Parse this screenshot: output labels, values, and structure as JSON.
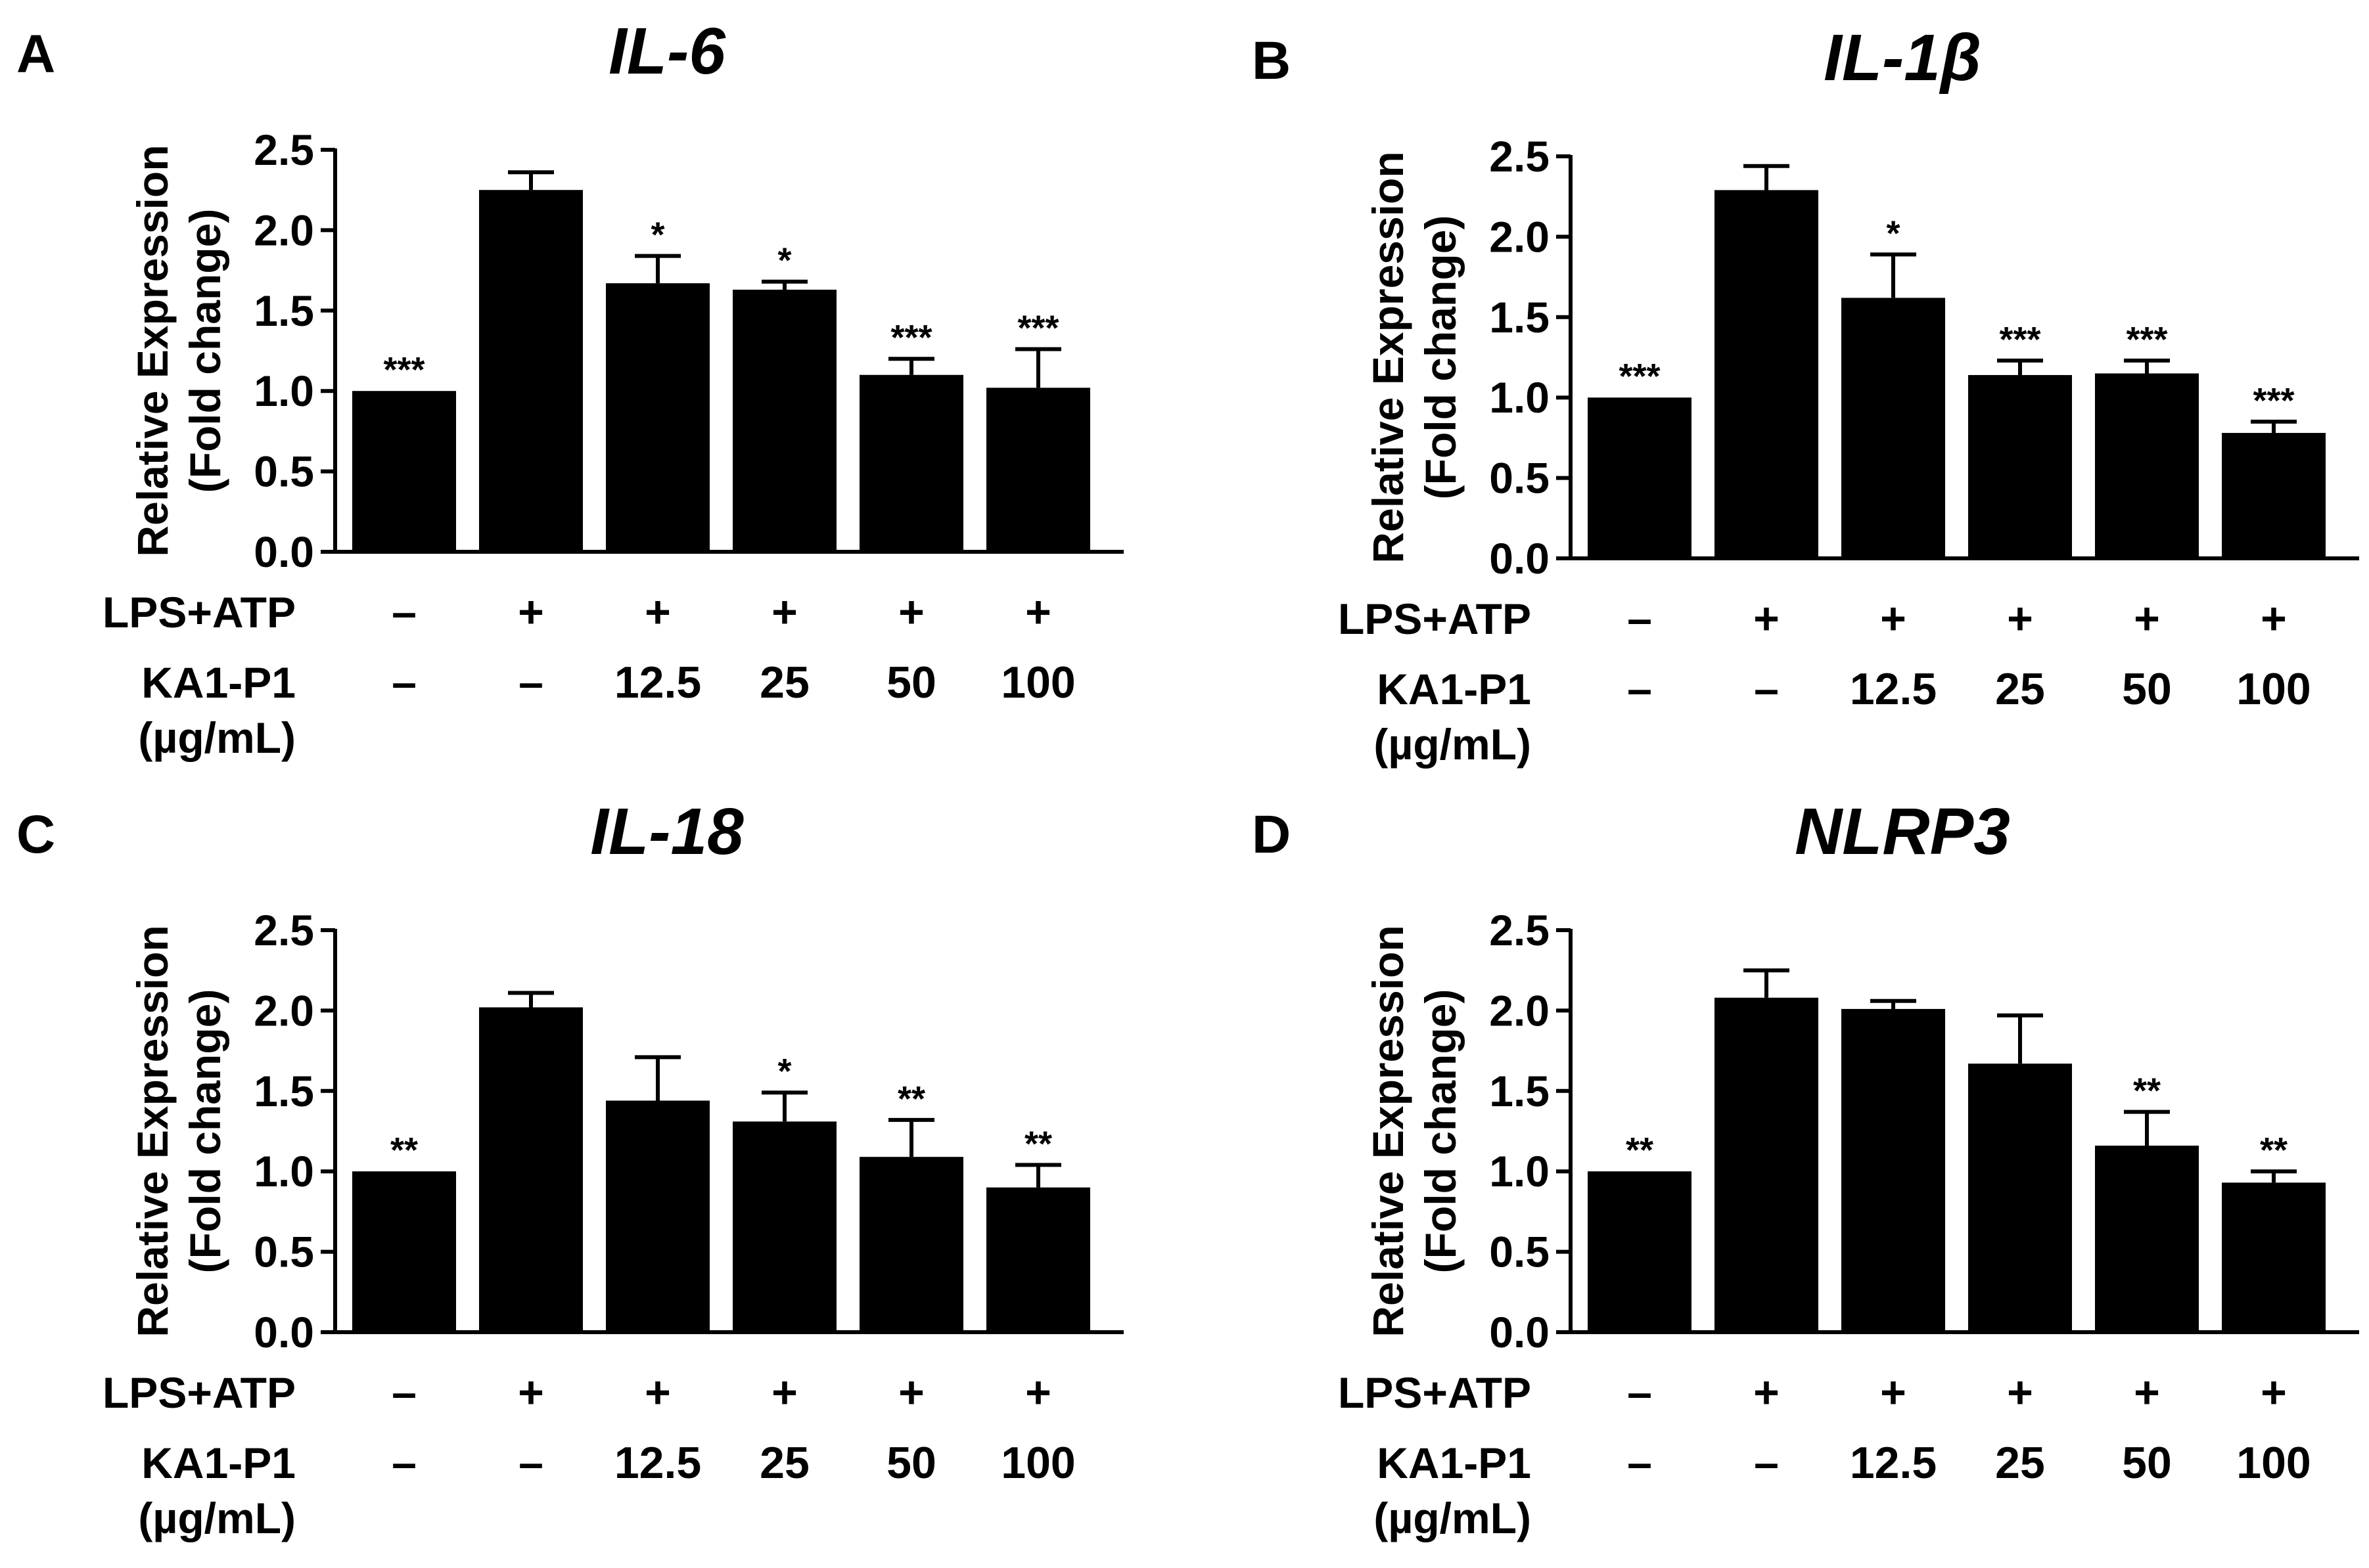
{
  "figure": {
    "row_labels": {
      "treatment": "LPS+ATP",
      "compound": "KA1-P1",
      "unit": "(µg/mL)"
    },
    "conditions": {
      "lps_atp": [
        "–",
        "+",
        "+",
        "+",
        "+",
        "+"
      ],
      "ka1_p1": [
        "–",
        "–",
        "12.5",
        "25",
        "50",
        "100"
      ]
    }
  },
  "chart_data": [
    {
      "panel": "A",
      "type": "bar",
      "title": "IL-6",
      "ylabel": "Relative Expression",
      "ylabel2": "(Fold change)",
      "ylim": [
        0,
        2.5
      ],
      "yticks": [
        "0.0",
        "0.5",
        "1.0",
        "1.5",
        "2.0",
        "2.5"
      ],
      "categories": [
        "–/–",
        "+/–",
        "+/12.5",
        "+/25",
        "+/50",
        "+/100"
      ],
      "values": [
        1.0,
        2.25,
        1.67,
        1.63,
        1.1,
        1.02
      ],
      "errors": [
        0.0,
        0.11,
        0.17,
        0.05,
        0.1,
        0.24
      ],
      "significance": [
        "***",
        "",
        "*",
        "*",
        "***",
        "***"
      ],
      "color": "#000000"
    },
    {
      "panel": "B",
      "type": "bar",
      "title": "IL-1β",
      "ylabel": "Relative Expression",
      "ylabel2": "(Fold change)",
      "ylim": [
        0,
        2.5
      ],
      "yticks": [
        "0.0",
        "0.5",
        "1.0",
        "1.5",
        "2.0",
        "2.5"
      ],
      "categories": [
        "–/–",
        "+/–",
        "+/12.5",
        "+/25",
        "+/50",
        "+/100"
      ],
      "values": [
        1.0,
        2.29,
        1.62,
        1.14,
        1.15,
        0.78
      ],
      "errors": [
        0.0,
        0.15,
        0.27,
        0.09,
        0.08,
        0.07
      ],
      "significance": [
        "***",
        "",
        "*",
        "***",
        "***",
        "***"
      ],
      "color": "#000000"
    },
    {
      "panel": "C",
      "type": "bar",
      "title": "IL-18",
      "ylabel": "Relative Expression",
      "ylabel2": "(Fold change)",
      "ylim": [
        0,
        2.5
      ],
      "yticks": [
        "0.0",
        "0.5",
        "1.0",
        "1.5",
        "2.0",
        "2.5"
      ],
      "categories": [
        "–/–",
        "+/–",
        "+/12.5",
        "+/25",
        "+/50",
        "+/100"
      ],
      "values": [
        1.0,
        2.02,
        1.44,
        1.31,
        1.09,
        0.9
      ],
      "errors": [
        0.0,
        0.09,
        0.27,
        0.18,
        0.23,
        0.14
      ],
      "significance": [
        "**",
        "",
        "",
        "*",
        "**",
        "**"
      ],
      "color": "#000000"
    },
    {
      "panel": "D",
      "type": "bar",
      "title": "NLRP3",
      "ylabel": "Relative Expression",
      "ylabel2": "(Fold change)",
      "ylim": [
        0,
        2.5
      ],
      "yticks": [
        "0.0",
        "0.5",
        "1.0",
        "1.5",
        "2.0",
        "2.5"
      ],
      "categories": [
        "–/–",
        "+/–",
        "+/12.5",
        "+/25",
        "+/50",
        "+/100"
      ],
      "values": [
        1.0,
        2.08,
        2.01,
        1.67,
        1.16,
        0.93
      ],
      "errors": [
        0.0,
        0.17,
        0.05,
        0.3,
        0.21,
        0.07
      ],
      "significance": [
        "**",
        "",
        "",
        "",
        "**",
        "**"
      ],
      "color": "#000000"
    }
  ]
}
